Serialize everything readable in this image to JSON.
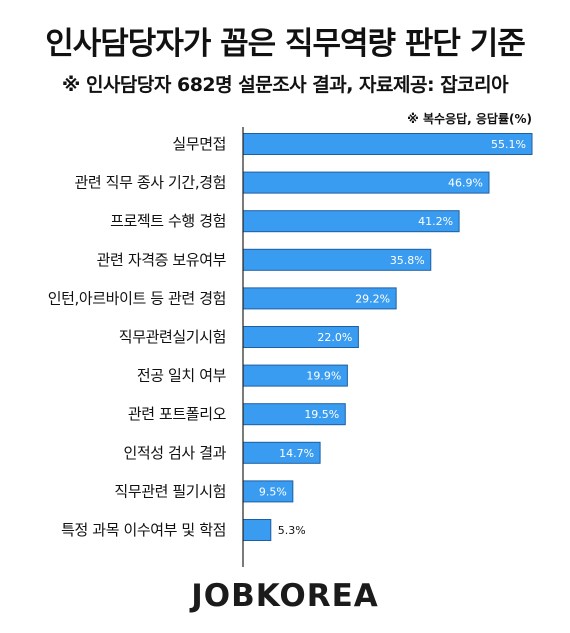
{
  "header": {
    "title": "인사담당자가 꼽은 직무역량 판단 기준",
    "subtitle": "※ 인사담당자 682명 설문조사 결과,  자료제공: 잡코리아"
  },
  "chart_data": {
    "type": "bar",
    "orientation": "horizontal",
    "note": "※ 복수응답, 응답률(%)",
    "unit": "%",
    "categories": [
      "실무면접",
      "관련 직무 종사 기간,경험",
      "프로젝트 수행 경험",
      "관련 자격증 보유여부",
      "인턴,아르바이트 등 관련 경험",
      "직무관련실기시험",
      "전공 일치 여부",
      "관련 포트폴리오",
      "인적성 검사 결과",
      "직무관련 필기시험",
      "특정 과목 이수여부 및 학점"
    ],
    "values": [
      55.1,
      46.9,
      41.2,
      35.8,
      29.2,
      22.0,
      19.9,
      19.5,
      14.7,
      9.5,
      5.3
    ],
    "value_labels": [
      "55.1%",
      "46.9%",
      "41.2%",
      "35.8%",
      "29.2%",
      "22.0%",
      "19.9%",
      "19.5%",
      "14.7%",
      "9.5%",
      "5.3%"
    ],
    "xlim": [
      0,
      55.1
    ],
    "grid": false,
    "colors": {
      "bar_fill": "#3a9cf0",
      "bar_stroke": "#1d5fa3",
      "axis": "#222222",
      "label_inside": "#ffffff",
      "label_outside": "#111111"
    }
  },
  "footer": {
    "logo_text": "JOBKOREA"
  }
}
